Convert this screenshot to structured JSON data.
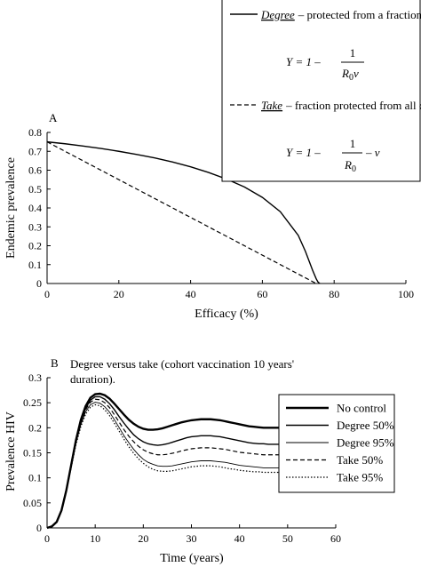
{
  "chart_data": [
    {
      "type": "line",
      "panel_label": "A",
      "xlabel": "Efficacy (%)",
      "ylabel": "Endemic prevalence",
      "xlim": [
        0,
        100
      ],
      "ylim": [
        0,
        0.8
      ],
      "xticks": [
        0,
        20,
        40,
        60,
        80,
        100
      ],
      "yticks": [
        0,
        0.1,
        0.2,
        0.3,
        0.4,
        0.5,
        0.6,
        0.7,
        0.8
      ],
      "legend_placement": "top-right",
      "series": [
        {
          "name": "Degree",
          "legend_text": "– protected from a fraction of challenges",
          "formula_lhs": "Y = 1 –",
          "formula_num": "1",
          "formula_den": "R",
          "formula_den_sub": "0",
          "formula_den_tail": "v",
          "formula_tail": "",
          "style": "solid",
          "x": [
            0,
            5,
            10,
            15,
            20,
            25,
            30,
            35,
            40,
            45,
            50,
            55,
            60,
            65,
            70,
            72,
            74,
            75,
            75.5,
            76
          ],
          "y": [
            0.75,
            0.74,
            0.728,
            0.715,
            0.7,
            0.683,
            0.665,
            0.643,
            0.618,
            0.588,
            0.553,
            0.511,
            0.456,
            0.38,
            0.255,
            0.17,
            0.07,
            0.025,
            0.008,
            0.0
          ]
        },
        {
          "name": "Take",
          "legend_text": "– fraction protected from all challenges",
          "formula_lhs": "Y = 1 –",
          "formula_num": "1",
          "formula_den": "R",
          "formula_den_sub": "0",
          "formula_den_tail": "",
          "formula_tail": "– v",
          "style": "dashed",
          "x": [
            0,
            75
          ],
          "y": [
            0.75,
            0.0
          ]
        }
      ]
    },
    {
      "type": "line",
      "panel_label": "B",
      "title": "Degree versus take (cohort vaccination 10 years' duration).",
      "xlabel": "Time (years)",
      "ylabel": "Prevalence HIV",
      "xlim": [
        0,
        60
      ],
      "ylim": [
        0,
        0.3
      ],
      "xticks": [
        0,
        10,
        20,
        30,
        40,
        50,
        60
      ],
      "yticks": [
        0,
        0.05,
        0.1,
        0.15,
        0.2,
        0.25,
        0.3
      ],
      "legend_placement": "right",
      "x": [
        0,
        1,
        2,
        3,
        4,
        5,
        6,
        7,
        8,
        9,
        10,
        11,
        12,
        13,
        14,
        15,
        16,
        17,
        18,
        19,
        20,
        21,
        22,
        23,
        24,
        25,
        26,
        27,
        28,
        29,
        30,
        31,
        32,
        33,
        34,
        35,
        36,
        37,
        38,
        39,
        40,
        41,
        42,
        43,
        44,
        45,
        46,
        47,
        48,
        49,
        50
      ],
      "series": [
        {
          "name": "No control",
          "style": "thick",
          "values": [
            0,
            0.003,
            0.012,
            0.035,
            0.075,
            0.125,
            0.175,
            0.215,
            0.243,
            0.26,
            0.267,
            0.268,
            0.265,
            0.258,
            0.248,
            0.237,
            0.226,
            0.216,
            0.208,
            0.202,
            0.198,
            0.196,
            0.196,
            0.197,
            0.199,
            0.202,
            0.205,
            0.208,
            0.211,
            0.213,
            0.215,
            0.216,
            0.217,
            0.217,
            0.217,
            0.216,
            0.215,
            0.213,
            0.211,
            0.209,
            0.207,
            0.205,
            0.203,
            0.202,
            0.201,
            0.2,
            0.2,
            0.2,
            0.2,
            0.2,
            0.2
          ]
        },
        {
          "name": "Degree 50%",
          "style": "solid",
          "values": [
            0,
            0.003,
            0.012,
            0.035,
            0.075,
            0.124,
            0.173,
            0.212,
            0.239,
            0.255,
            0.262,
            0.262,
            0.257,
            0.248,
            0.236,
            0.222,
            0.209,
            0.197,
            0.186,
            0.178,
            0.172,
            0.168,
            0.166,
            0.165,
            0.166,
            0.168,
            0.171,
            0.174,
            0.177,
            0.18,
            0.182,
            0.183,
            0.184,
            0.184,
            0.184,
            0.183,
            0.182,
            0.18,
            0.178,
            0.176,
            0.174,
            0.172,
            0.17,
            0.169,
            0.168,
            0.168,
            0.167,
            0.167,
            0.167,
            0.167,
            0.167
          ]
        },
        {
          "name": "Degree 95%",
          "style": "thin",
          "values": [
            0,
            0.003,
            0.012,
            0.035,
            0.074,
            0.122,
            0.169,
            0.206,
            0.232,
            0.246,
            0.251,
            0.249,
            0.242,
            0.231,
            0.216,
            0.2,
            0.184,
            0.17,
            0.157,
            0.146,
            0.137,
            0.131,
            0.127,
            0.124,
            0.123,
            0.123,
            0.124,
            0.126,
            0.128,
            0.13,
            0.132,
            0.133,
            0.134,
            0.134,
            0.134,
            0.133,
            0.132,
            0.131,
            0.129,
            0.127,
            0.125,
            0.124,
            0.123,
            0.122,
            0.121,
            0.12,
            0.12,
            0.12,
            0.12,
            0.12,
            0.12
          ]
        },
        {
          "name": "Take 50%",
          "style": "dashed",
          "values": [
            0,
            0.003,
            0.012,
            0.035,
            0.074,
            0.123,
            0.171,
            0.209,
            0.236,
            0.251,
            0.257,
            0.256,
            0.25,
            0.24,
            0.226,
            0.211,
            0.196,
            0.183,
            0.172,
            0.163,
            0.156,
            0.151,
            0.148,
            0.146,
            0.146,
            0.147,
            0.149,
            0.151,
            0.154,
            0.156,
            0.158,
            0.159,
            0.16,
            0.16,
            0.16,
            0.159,
            0.158,
            0.157,
            0.155,
            0.153,
            0.151,
            0.15,
            0.149,
            0.148,
            0.147,
            0.146,
            0.146,
            0.146,
            0.146,
            0.146,
            0.146
          ]
        },
        {
          "name": "Take 95%",
          "style": "dotted",
          "values": [
            0,
            0.003,
            0.012,
            0.034,
            0.073,
            0.12,
            0.166,
            0.202,
            0.227,
            0.241,
            0.246,
            0.244,
            0.236,
            0.224,
            0.209,
            0.193,
            0.177,
            0.162,
            0.149,
            0.138,
            0.129,
            0.122,
            0.117,
            0.114,
            0.113,
            0.113,
            0.114,
            0.116,
            0.118,
            0.12,
            0.122,
            0.123,
            0.124,
            0.124,
            0.124,
            0.123,
            0.122,
            0.12,
            0.118,
            0.117,
            0.115,
            0.114,
            0.113,
            0.112,
            0.112,
            0.111,
            0.111,
            0.111,
            0.111,
            0.111,
            0.111
          ]
        }
      ]
    }
  ]
}
